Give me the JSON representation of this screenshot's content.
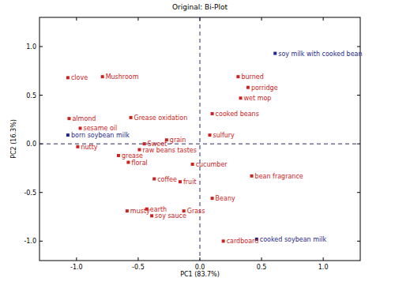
{
  "chart_data": {
    "type": "scatter",
    "title": "Original: Bi-Plot",
    "x_label": "PC1 (83.7%)",
    "y_label": "PC2 (16.3%)",
    "xlim": [
      -1.3,
      1.3
    ],
    "ylim": [
      -1.2,
      1.3
    ],
    "xticks": [
      {
        "value": -1,
        "label": "-1.0"
      },
      {
        "value": -0.5,
        "label": "-0.5"
      },
      {
        "value": 0,
        "label": "0.0"
      },
      {
        "value": 0.5,
        "label": "0.5"
      },
      {
        "value": 1,
        "label": "1.0"
      }
    ],
    "yticks": [
      {
        "value": -1,
        "label": "-1.0"
      },
      {
        "value": -0.5,
        "label": "-0.5"
      },
      {
        "value": 0,
        "label": "0.0"
      },
      {
        "value": 0.5,
        "label": "0.5"
      },
      {
        "value": 1,
        "label": "1.0"
      }
    ],
    "grid": false,
    "series": [
      {
        "color": "#cc2222",
        "marker": "square",
        "labels": [
          "clove",
          "Mushroom",
          "almond",
          "sesame oil",
          "nutty",
          "Grease oxidation",
          "Sweet",
          "grain",
          "raw beans tastes",
          "grease",
          "floral",
          "coffee",
          "fruit",
          "cucumber",
          "sulfury",
          "cooked beans",
          "burned",
          "porridge",
          "wet mop",
          "bean fragrance",
          "Beany",
          "Grass",
          "soy sauce",
          "musty",
          "earth",
          "cardboard"
        ],
        "x": [
          -1.07,
          -0.79,
          -1.06,
          -0.97,
          -0.99,
          -0.56,
          -0.45,
          -0.27,
          -0.49,
          -0.66,
          -0.58,
          -0.37,
          -0.16,
          -0.06,
          0.08,
          0.1,
          0.31,
          0.39,
          0.33,
          0.42,
          0.1,
          -0.13,
          -0.39,
          -0.59,
          -0.43,
          0.19
        ],
        "values": [
          0.68,
          0.69,
          0.26,
          0.16,
          -0.03,
          0.27,
          0.0,
          0.04,
          -0.06,
          -0.12,
          -0.19,
          -0.36,
          -0.39,
          -0.21,
          0.09,
          0.31,
          0.69,
          0.58,
          0.47,
          -0.33,
          -0.56,
          -0.69,
          -0.74,
          -0.69,
          -0.67,
          -1.0
        ]
      },
      {
        "color": "#1f2a8a",
        "marker": "square",
        "labels": [
          "born soybean milk",
          "soy milk with cooked bean",
          "cooked soybean milk"
        ],
        "x": [
          -1.07,
          0.61,
          0.46
        ],
        "values": [
          0.09,
          0.93,
          -0.98
        ]
      }
    ]
  }
}
